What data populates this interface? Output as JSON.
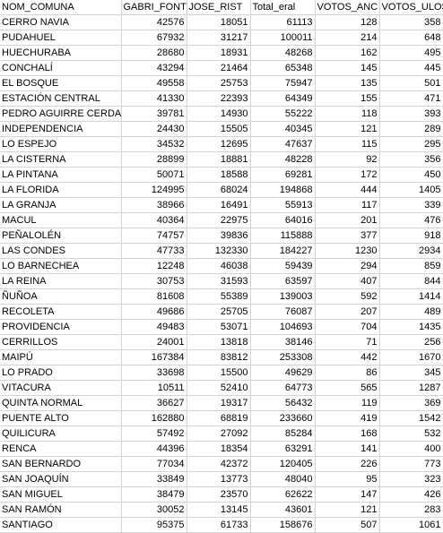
{
  "sheet": {
    "headers": [
      "NOM_COMUNA",
      "GABRI_FONT",
      "JOSE_RIST",
      "Total_eral",
      "VOTOS_ANC",
      "VOTOS_ULOS"
    ],
    "rows": [
      [
        "CERRO NAVIA",
        "42576",
        "18051",
        "61113",
        "128",
        "358"
      ],
      [
        "PUDAHUEL",
        "67932",
        "31217",
        "100011",
        "214",
        "648"
      ],
      [
        "HUECHURABA",
        "28680",
        "18931",
        "48268",
        "162",
        "495"
      ],
      [
        "CONCHALÍ",
        "43294",
        "21464",
        "65348",
        "145",
        "445"
      ],
      [
        "EL BOSQUE",
        "49558",
        "25753",
        "75947",
        "135",
        "501"
      ],
      [
        "ESTACIÓN CENTRAL",
        "41330",
        "22393",
        "64349",
        "155",
        "471"
      ],
      [
        "PEDRO AGUIRRE CERDA",
        "39781",
        "14930",
        "55222",
        "118",
        "393"
      ],
      [
        "INDEPENDENCIA",
        "24430",
        "15505",
        "40345",
        "121",
        "289"
      ],
      [
        "LO ESPEJO",
        "34532",
        "12695",
        "47637",
        "115",
        "295"
      ],
      [
        "LA CISTERNA",
        "28899",
        "18881",
        "48228",
        "92",
        "356"
      ],
      [
        "LA PINTANA",
        "50071",
        "18588",
        "69281",
        "172",
        "450"
      ],
      [
        "LA FLORIDA",
        "124995",
        "68024",
        "194868",
        "444",
        "1405"
      ],
      [
        "LA GRANJA",
        "38966",
        "16491",
        "55913",
        "117",
        "339"
      ],
      [
        "MACUL",
        "40364",
        "22975",
        "64016",
        "201",
        "476"
      ],
      [
        "PEÑALOLÉN",
        "74757",
        "39836",
        "115888",
        "377",
        "918"
      ],
      [
        "LAS CONDES",
        "47733",
        "132330",
        "184227",
        "1230",
        "2934"
      ],
      [
        "LO BARNECHEA",
        "12248",
        "46038",
        "59439",
        "294",
        "859"
      ],
      [
        "LA REINA",
        "30753",
        "31593",
        "63597",
        "407",
        "844"
      ],
      [
        "ÑUÑOA",
        "81608",
        "55389",
        "139003",
        "592",
        "1414"
      ],
      [
        "RECOLETA",
        "49686",
        "25705",
        "76087",
        "207",
        "489"
      ],
      [
        "PROVIDENCIA",
        "49483",
        "53071",
        "104693",
        "704",
        "1435"
      ],
      [
        "CERRILLOS",
        "24001",
        "13818",
        "38146",
        "71",
        "256"
      ],
      [
        "MAIPÚ",
        "167384",
        "83812",
        "253308",
        "442",
        "1670"
      ],
      [
        "LO PRADO",
        "33698",
        "15500",
        "49629",
        "86",
        "345"
      ],
      [
        "VITACURA",
        "10511",
        "52410",
        "64773",
        "565",
        "1287"
      ],
      [
        "QUINTA NORMAL",
        "36627",
        "19317",
        "56432",
        "119",
        "369"
      ],
      [
        "PUENTE ALTO",
        "162880",
        "68819",
        "233660",
        "419",
        "1542"
      ],
      [
        "QUILICURA",
        "57492",
        "27092",
        "85284",
        "168",
        "532"
      ],
      [
        "RENCA",
        "44396",
        "18354",
        "63291",
        "141",
        "400"
      ],
      [
        "SAN BERNARDO",
        "77034",
        "42372",
        "120405",
        "226",
        "773"
      ],
      [
        "SAN JOAQUÍN",
        "33849",
        "13773",
        "48040",
        "95",
        "323"
      ],
      [
        "SAN MIGUEL",
        "38479",
        "23570",
        "62622",
        "147",
        "426"
      ],
      [
        "SAN RAMÓN",
        "30052",
        "13145",
        "43601",
        "121",
        "283"
      ],
      [
        "SANTIAGO",
        "95375",
        "61733",
        "158676",
        "507",
        "1061"
      ]
    ]
  }
}
